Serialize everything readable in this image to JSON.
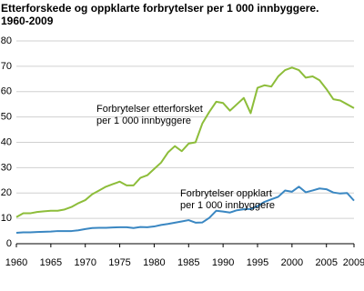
{
  "chart_data": {
    "type": "line",
    "title": "Etterforskede og oppklarte forbrytelser per 1 000 innbyggere.",
    "subtitle": "1960-2009",
    "x": [
      1960,
      1961,
      1962,
      1963,
      1964,
      1965,
      1966,
      1967,
      1968,
      1969,
      1970,
      1971,
      1972,
      1973,
      1974,
      1975,
      1976,
      1977,
      1978,
      1979,
      1980,
      1981,
      1982,
      1983,
      1984,
      1985,
      1986,
      1987,
      1988,
      1989,
      1990,
      1991,
      1992,
      1993,
      1994,
      1995,
      1996,
      1997,
      1998,
      1999,
      2000,
      2001,
      2002,
      2003,
      2004,
      2005,
      2006,
      2007,
      2008,
      2009
    ],
    "series": [
      {
        "name": "Forbrytelser etterforsket",
        "color": "#8dbd3a",
        "annotation": [
          "Forbrytelser etterforsket",
          "per 1 000 innbyggere"
        ],
        "values": [
          10.5,
          12,
          12,
          12.5,
          12.8,
          13,
          13,
          13.5,
          14.5,
          16,
          17.2,
          19.5,
          21,
          22.5,
          23.5,
          24.5,
          23,
          23,
          26,
          27,
          29.5,
          32,
          36,
          38.5,
          36.5,
          39.5,
          40,
          47.5,
          52,
          56,
          55.5,
          52.5,
          55,
          57.5,
          51.5,
          61.5,
          62.5,
          62,
          66,
          68.5,
          69.5,
          68.5,
          65.5,
          66,
          64.5,
          61,
          57,
          56.5,
          55,
          53.5
        ]
      },
      {
        "name": "Forbrytelser oppklart",
        "color": "#3a87c2",
        "annotation": [
          "Forbrytelser oppklart",
          "per 1 000 innbyggere"
        ],
        "values": [
          4.3,
          4.5,
          4.5,
          4.6,
          4.7,
          4.8,
          5,
          5,
          5,
          5.3,
          5.8,
          6.2,
          6.3,
          6.3,
          6.4,
          6.5,
          6.5,
          6.2,
          6.6,
          6.5,
          6.8,
          7.4,
          7.8,
          8.3,
          8.8,
          9.3,
          8.3,
          8.4,
          10.2,
          13,
          12.7,
          12.3,
          13.2,
          13.6,
          13.7,
          14.8,
          16.5,
          17.5,
          18.5,
          21,
          20.5,
          22.5,
          20.3,
          21,
          21.8,
          21.5,
          20.2,
          19.8,
          20,
          17
        ]
      }
    ],
    "xlim": [
      1960,
      2009
    ],
    "xticks": [
      1960,
      1965,
      1970,
      1975,
      1980,
      1985,
      1990,
      1995,
      2000,
      2005,
      2009
    ],
    "ylim": [
      0,
      80
    ],
    "yticks": [
      0,
      10,
      20,
      30,
      40,
      50,
      60,
      70,
      80
    ],
    "grid": true
  }
}
